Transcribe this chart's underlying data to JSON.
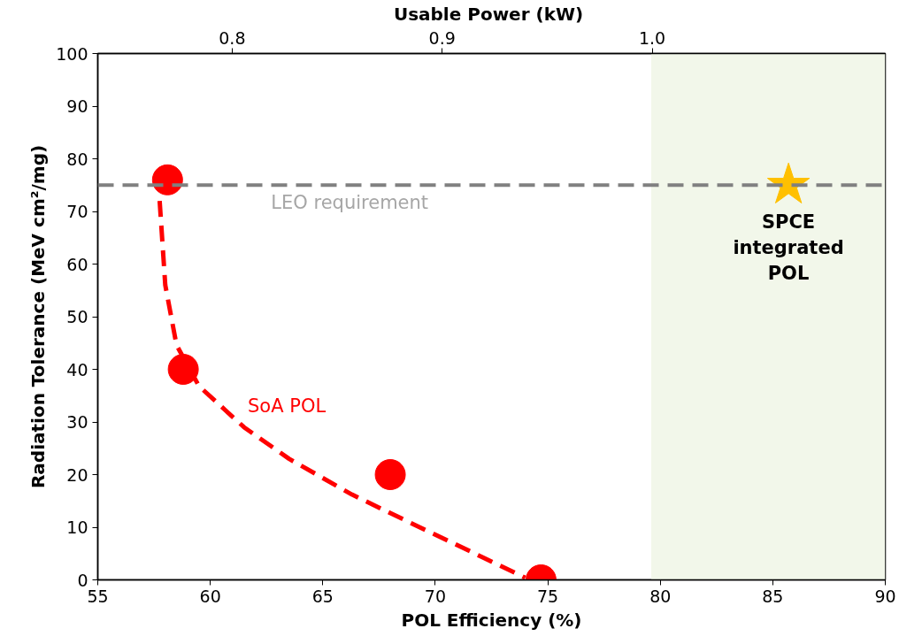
{
  "chart_data": {
    "type": "scatter",
    "xlabel": "POL Efficiency (%)",
    "ylabel": "Radiation Tolerance (MeV cm²/mg)",
    "x2label": "Usable Power  (kW)",
    "xlim": [
      55,
      90
    ],
    "xticks": [
      55,
      60,
      65,
      70,
      75,
      80,
      85,
      90
    ],
    "ylim": [
      0,
      100
    ],
    "yticks": [
      0,
      10,
      20,
      30,
      40,
      50,
      60,
      70,
      80,
      90,
      100
    ],
    "x2lim": [
      0.736,
      1.111
    ],
    "x2ticks": [
      0.8,
      0.9,
      {
        "value": 1.0,
        "label": "1.0"
      }
    ],
    "grid": false,
    "series": [
      {
        "type": "line",
        "line_style": "dashed",
        "marker": "none",
        "color": "#ff0000",
        "x": [
          57.75,
          58.0,
          58.5,
          59.5,
          61.5,
          63.5,
          66.3,
          69.6,
          72.0,
          74.0
        ],
        "values": [
          72,
          56,
          44.6,
          36.8,
          29,
          23,
          16.2,
          9.4,
          4.5,
          0.4
        ]
      },
      {
        "type": "scatter",
        "marker": "circle",
        "color": "#ff0000",
        "x": [
          58.1,
          58.8,
          68.0,
          74.7
        ],
        "values": [
          76,
          40,
          20,
          0
        ]
      },
      {
        "marker": "star",
        "color": "#ffc000",
        "x": [
          85.7
        ],
        "values": [
          75
        ]
      }
    ],
    "ref_lines": [
      {
        "axis": "y",
        "value": 75,
        "label": "LEO requirement",
        "color": "#808080",
        "line_style": "dashed"
      }
    ],
    "bands": [
      {
        "axis": "x",
        "from": 79.6,
        "to": 90,
        "label": null,
        "color": "#f2f7ea"
      }
    ],
    "annotations": [
      "SoA POL",
      "SPCE\nintegrated\nPOL"
    ]
  }
}
